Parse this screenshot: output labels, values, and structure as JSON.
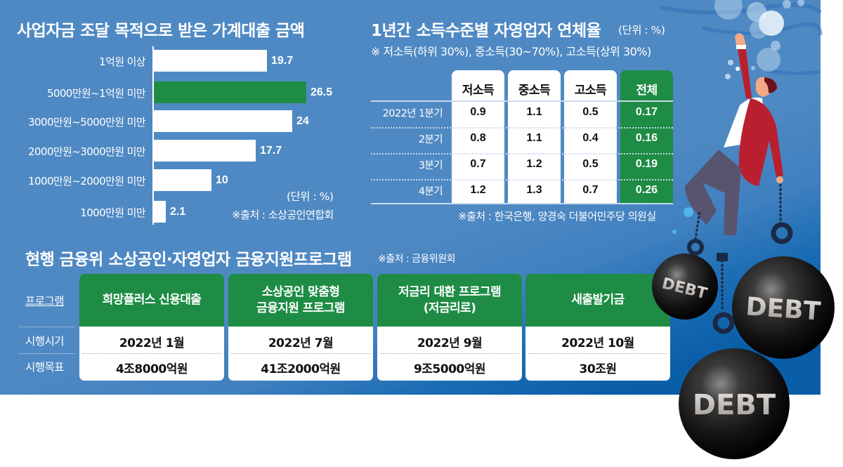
{
  "colors": {
    "panel_bg": "#4f89c3",
    "panel_bg_dark": "#0a5ea8",
    "highlight_green": "#1e8c45",
    "bar_white": "#ffffff",
    "text_dark": "#111111"
  },
  "loan_chart": {
    "title": "사업자금 조달 목적으로 받은 가계대출 금액",
    "unit": "(단위 : %)",
    "source": "※출처 : 소상공인연합회"
  },
  "delinquency_table": {
    "title": "1년간 소득수준별 자영업자 연체율",
    "unit": "(단위 : %)",
    "note": "※ 저소득(하위 30%), 중소득(30~70%), 고소득(상위 30%)",
    "columns": [
      "저소득",
      "중소득",
      "고소득",
      "전체"
    ],
    "rows": [
      {
        "label": "2022년 1분기",
        "values": [
          "0.9",
          "1.1",
          "0.5",
          "0.17"
        ]
      },
      {
        "label": "2분기",
        "values": [
          "0.8",
          "1.1",
          "0.4",
          "0.16"
        ]
      },
      {
        "label": "3분기",
        "values": [
          "0.7",
          "1.2",
          "0.5",
          "0.19"
        ]
      },
      {
        "label": "4분기",
        "values": [
          "1.2",
          "1.3",
          "0.7",
          "0.26"
        ]
      }
    ],
    "source": "※출처 : 한국은행, 양경숙 더불어민주당 의원실"
  },
  "programs": {
    "title": "현행 금융위 소상공인·자영업자 금융지원프로그램",
    "source": "※출처 : 금융위원회",
    "row_headers": [
      "프로그램",
      "시행시기",
      "시행목표"
    ],
    "items": [
      {
        "name": "희망플러스 신용대출",
        "date": "2022년 1월",
        "goal": "4조8000억원"
      },
      {
        "name": "소상공인 맞춤형\n금융지원 프로그램",
        "date": "2022년 7월",
        "goal": "41조2000억원"
      },
      {
        "name": "저금리 대환 프로그램\n(저금리로)",
        "date": "2022년 9월",
        "goal": "9조5000억원"
      },
      {
        "name": "새출발기금",
        "date": "2022년 10월",
        "goal": "30조원"
      }
    ]
  },
  "illustration": {
    "weights": [
      "DEBT",
      "DEBT",
      "DEBT"
    ]
  },
  "chart_data": [
    {
      "type": "bar",
      "orientation": "horizontal",
      "title": "사업자금 조달 목적으로 받은 가계대출 금액",
      "categories": [
        "1억원 이상",
        "5000만원~1억원 미만",
        "3000만원~5000만원 미만",
        "2000만원~3000만원 미만",
        "1000만원~2000만원 미만",
        "1000만원 미만"
      ],
      "values": [
        19.7,
        26.5,
        24,
        17.7,
        10,
        2.1
      ],
      "highlight_index": 1,
      "unit": "%",
      "xlabel": "",
      "ylabel": "",
      "xlim": [
        0,
        30
      ],
      "grid": false,
      "source": "※출처 : 소상공인연합회"
    },
    {
      "type": "table",
      "title": "1년간 소득수준별 자영업자 연체율",
      "unit": "%",
      "columns": [
        "저소득",
        "중소득",
        "고소득",
        "전체"
      ],
      "row_labels": [
        "2022년 1분기",
        "2분기",
        "3분기",
        "4분기"
      ],
      "series": [
        {
          "name": "저소득",
          "values": [
            0.9,
            0.8,
            0.7,
            1.2
          ]
        },
        {
          "name": "중소득",
          "values": [
            1.1,
            1.1,
            1.2,
            1.3
          ]
        },
        {
          "name": "고소득",
          "values": [
            0.5,
            0.4,
            0.5,
            0.7
          ]
        },
        {
          "name": "전체",
          "values": [
            0.17,
            0.16,
            0.19,
            0.26
          ]
        }
      ],
      "source": "※출처 : 한국은행, 양경숙 더불어민주당 의원실"
    },
    {
      "type": "table",
      "title": "현행 금융위 소상공인·자영업자 금융지원프로그램",
      "columns": [
        "프로그램",
        "시행시기",
        "시행목표"
      ],
      "rows": [
        [
          "희망플러스 신용대출",
          "2022년 1월",
          "4조8000억원"
        ],
        [
          "소상공인 맞춤형 금융지원 프로그램",
          "2022년 7월",
          "41조2000억원"
        ],
        [
          "저금리 대환 프로그램(저금리로)",
          "2022년 9월",
          "9조5000억원"
        ],
        [
          "새출발기금",
          "2022년 10월",
          "30조원"
        ]
      ],
      "source": "※출처 : 금융위원회"
    }
  ]
}
